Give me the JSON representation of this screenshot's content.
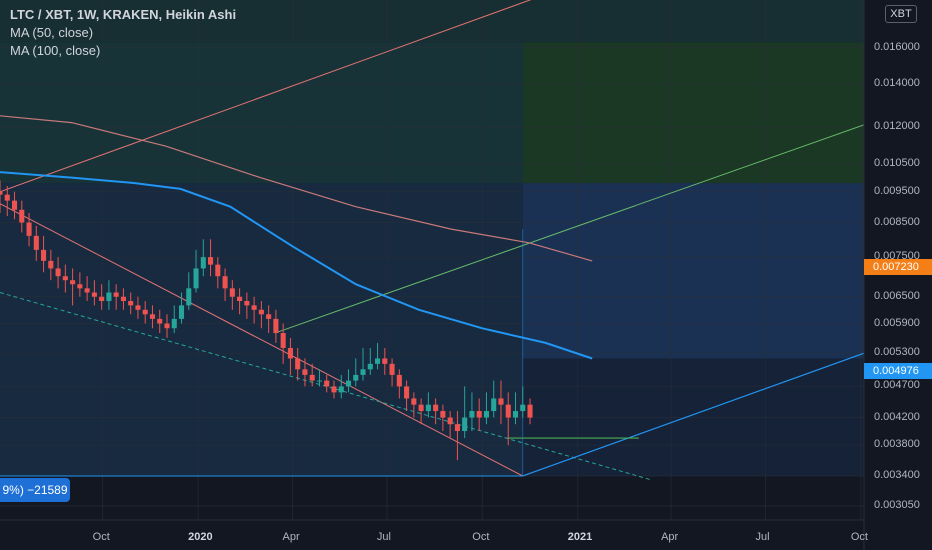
{
  "legend": {
    "title": "LTC / XBT, 1W, KRAKEN, Heikin Ashi",
    "ma50": "MA (50, close)",
    "ma100": "MA (100, close)"
  },
  "currency_badge": "XBT",
  "price_tags": [
    {
      "label": "0.007230",
      "value": 0.00723,
      "color": "#f57f17"
    },
    {
      "label": "0.004976",
      "value": 0.004976,
      "color": "#2196f3"
    }
  ],
  "range_badge": "9%) −21589",
  "colors": {
    "background": "#131722",
    "up": "#26a69a",
    "down": "#ef5350",
    "ma50": "#2196f3",
    "ma100": "#c87979",
    "price_tag_orange": "#f57f17",
    "price_tag_blue": "#2196f3"
  },
  "chart_data": {
    "type": "candlestick",
    "y_scale": "log",
    "ylim": [
      0.0029,
      0.019
    ],
    "y_ticks": [
      {
        "label": "0.016000",
        "value": 0.016
      },
      {
        "label": "0.014000",
        "value": 0.014
      },
      {
        "label": "0.012000",
        "value": 0.012
      },
      {
        "label": "0.010500",
        "value": 0.0105
      },
      {
        "label": "0.009500",
        "value": 0.0095
      },
      {
        "label": "0.008500",
        "value": 0.0085
      },
      {
        "label": "0.007500",
        "value": 0.0075
      },
      {
        "label": "0.006500",
        "value": 0.0065
      },
      {
        "label": "0.005900",
        "value": 0.0059
      },
      {
        "label": "0.005300",
        "value": 0.0053
      },
      {
        "label": "0.004700",
        "value": 0.0047
      },
      {
        "label": "0.004200",
        "value": 0.0042
      },
      {
        "label": "0.003800",
        "value": 0.0038
      },
      {
        "label": "0.003400",
        "value": 0.0034
      },
      {
        "label": "0.003050",
        "value": 0.00305
      }
    ],
    "x_ticks": [
      {
        "label": "Oct",
        "date": "2019-10-01",
        "bold": false
      },
      {
        "label": "2020",
        "date": "2020-01-01",
        "bold": true
      },
      {
        "label": "Apr",
        "date": "2020-04-01",
        "bold": false
      },
      {
        "label": "Jul",
        "date": "2020-07-01",
        "bold": false
      },
      {
        "label": "Oct",
        "date": "2020-10-01",
        "bold": false
      },
      {
        "label": "2021",
        "date": "2021-01-01",
        "bold": true
      },
      {
        "label": "Apr",
        "date": "2021-04-01",
        "bold": false
      },
      {
        "label": "Jul",
        "date": "2021-07-01",
        "bold": false
      },
      {
        "label": "Oct",
        "date": "2021-10-01",
        "bold": false
      }
    ],
    "x_range": [
      "2019-06-24",
      "2021-10-04"
    ],
    "candles_start": "2019-06-24",
    "candles_interval_days": 7,
    "candles": [
      [
        0.0095,
        0.0094,
        0.0099,
        0.0088
      ],
      [
        0.0094,
        0.0092,
        0.0097,
        0.0087
      ],
      [
        0.0092,
        0.0089,
        0.0095,
        0.0086
      ],
      [
        0.0089,
        0.0085,
        0.0092,
        0.0082
      ],
      [
        0.0085,
        0.0081,
        0.0088,
        0.0078
      ],
      [
        0.0081,
        0.0077,
        0.0084,
        0.0074
      ],
      [
        0.0077,
        0.0074,
        0.0081,
        0.0071
      ],
      [
        0.0074,
        0.0072,
        0.0077,
        0.0069
      ],
      [
        0.0072,
        0.007,
        0.0075,
        0.0067
      ],
      [
        0.007,
        0.0069,
        0.0073,
        0.0066
      ],
      [
        0.0069,
        0.0068,
        0.0072,
        0.0063
      ],
      [
        0.0068,
        0.0067,
        0.0071,
        0.0065
      ],
      [
        0.0067,
        0.0066,
        0.007,
        0.0064
      ],
      [
        0.0066,
        0.0065,
        0.0069,
        0.0063
      ],
      [
        0.0065,
        0.0064,
        0.0068,
        0.0062
      ],
      [
        0.0064,
        0.0066,
        0.0069,
        0.0062
      ],
      [
        0.0066,
        0.0065,
        0.0068,
        0.0062
      ],
      [
        0.0065,
        0.0064,
        0.0067,
        0.0062
      ],
      [
        0.0064,
        0.0063,
        0.0066,
        0.0061
      ],
      [
        0.0063,
        0.0062,
        0.0065,
        0.006
      ],
      [
        0.0062,
        0.0061,
        0.0064,
        0.0059
      ],
      [
        0.0061,
        0.006,
        0.0063,
        0.0058
      ],
      [
        0.006,
        0.0059,
        0.0062,
        0.0057
      ],
      [
        0.0059,
        0.0058,
        0.0061,
        0.0056
      ],
      [
        0.0058,
        0.006,
        0.0063,
        0.0057
      ],
      [
        0.006,
        0.0063,
        0.0066,
        0.0059
      ],
      [
        0.0063,
        0.0067,
        0.0071,
        0.0062
      ],
      [
        0.0067,
        0.0072,
        0.0077,
        0.0066
      ],
      [
        0.0072,
        0.0075,
        0.008,
        0.007
      ],
      [
        0.0075,
        0.0073,
        0.008,
        0.007
      ],
      [
        0.0073,
        0.007,
        0.0075,
        0.0067
      ],
      [
        0.007,
        0.0067,
        0.0072,
        0.0064
      ],
      [
        0.0067,
        0.0065,
        0.0069,
        0.0062
      ],
      [
        0.0065,
        0.0064,
        0.0067,
        0.0061
      ],
      [
        0.0064,
        0.0063,
        0.0066,
        0.006
      ],
      [
        0.0063,
        0.0062,
        0.0065,
        0.0059
      ],
      [
        0.0062,
        0.0061,
        0.0064,
        0.0058
      ],
      [
        0.0061,
        0.006,
        0.0063,
        0.0057
      ],
      [
        0.006,
        0.0057,
        0.0062,
        0.0055
      ],
      [
        0.0057,
        0.0054,
        0.0059,
        0.0051
      ],
      [
        0.0054,
        0.0052,
        0.0056,
        0.0049
      ],
      [
        0.0052,
        0.005,
        0.0054,
        0.0048
      ],
      [
        0.005,
        0.0049,
        0.0052,
        0.0047
      ],
      [
        0.0049,
        0.0048,
        0.0051,
        0.0047
      ],
      [
        0.0048,
        0.0048,
        0.005,
        0.0047
      ],
      [
        0.0048,
        0.0047,
        0.0049,
        0.0046
      ],
      [
        0.0047,
        0.0046,
        0.0048,
        0.0045
      ],
      [
        0.0046,
        0.0047,
        0.0049,
        0.0045
      ],
      [
        0.0047,
        0.0048,
        0.005,
        0.0046
      ],
      [
        0.0048,
        0.0049,
        0.0052,
        0.0047
      ],
      [
        0.0049,
        0.005,
        0.0054,
        0.0048
      ],
      [
        0.005,
        0.0051,
        0.0054,
        0.0049
      ],
      [
        0.0051,
        0.0052,
        0.0055,
        0.005
      ],
      [
        0.0052,
        0.0051,
        0.0054,
        0.0049
      ],
      [
        0.0051,
        0.0049,
        0.0052,
        0.0047
      ],
      [
        0.0049,
        0.0047,
        0.005,
        0.0045
      ],
      [
        0.0047,
        0.0045,
        0.0048,
        0.0043
      ],
      [
        0.0045,
        0.0044,
        0.0046,
        0.0042
      ],
      [
        0.0044,
        0.0043,
        0.0045,
        0.0041
      ],
      [
        0.0043,
        0.0044,
        0.0046,
        0.0042
      ],
      [
        0.0044,
        0.0043,
        0.0045,
        0.0041
      ],
      [
        0.0043,
        0.0042,
        0.0044,
        0.004
      ],
      [
        0.0042,
        0.0041,
        0.0043,
        0.0039
      ],
      [
        0.0041,
        0.004,
        0.0043,
        0.0036
      ],
      [
        0.004,
        0.0042,
        0.0047,
        0.0039
      ],
      [
        0.0042,
        0.0043,
        0.0046,
        0.004
      ],
      [
        0.0043,
        0.0042,
        0.0045,
        0.004
      ],
      [
        0.0042,
        0.0043,
        0.0046,
        0.0041
      ],
      [
        0.0043,
        0.0045,
        0.0048,
        0.0042
      ],
      [
        0.0045,
        0.0044,
        0.0048,
        0.0041
      ],
      [
        0.0044,
        0.0042,
        0.0046,
        0.0038
      ],
      [
        0.0042,
        0.0043,
        0.0046,
        0.0041
      ],
      [
        0.0043,
        0.0044,
        0.0047,
        0.0042
      ],
      [
        0.0044,
        0.0042,
        0.0045,
        0.0041
      ]
    ],
    "ma50": [
      [
        "2019-06-24",
        0.0102
      ],
      [
        "2019-09-01",
        0.01
      ],
      [
        "2019-11-01",
        0.0098
      ],
      [
        "2019-12-15",
        0.0096
      ],
      [
        "2020-02-01",
        0.009
      ],
      [
        "2020-04-01",
        0.0078
      ],
      [
        "2020-06-01",
        0.0068
      ],
      [
        "2020-08-01",
        0.0062
      ],
      [
        "2020-10-01",
        0.0058
      ],
      [
        "2020-12-01",
        0.0055
      ],
      [
        "2021-01-15",
        0.0052
      ]
    ],
    "ma100": [
      [
        "2019-06-24",
        0.0125
      ],
      [
        "2019-09-01",
        0.0122
      ],
      [
        "2019-12-01",
        0.0112
      ],
      [
        "2020-03-01",
        0.01
      ],
      [
        "2020-06-01",
        0.009
      ],
      [
        "2020-09-01",
        0.0083
      ],
      [
        "2020-11-15",
        0.0079
      ],
      [
        "2021-01-15",
        0.0074
      ]
    ],
    "fib_levels": [
      0.0163,
      0.012,
      0.0098,
      0.0083,
      0.0052,
      0.0034
    ],
    "wedge_start": "2020-11-09",
    "wedge_start_price": 0.0034
  }
}
